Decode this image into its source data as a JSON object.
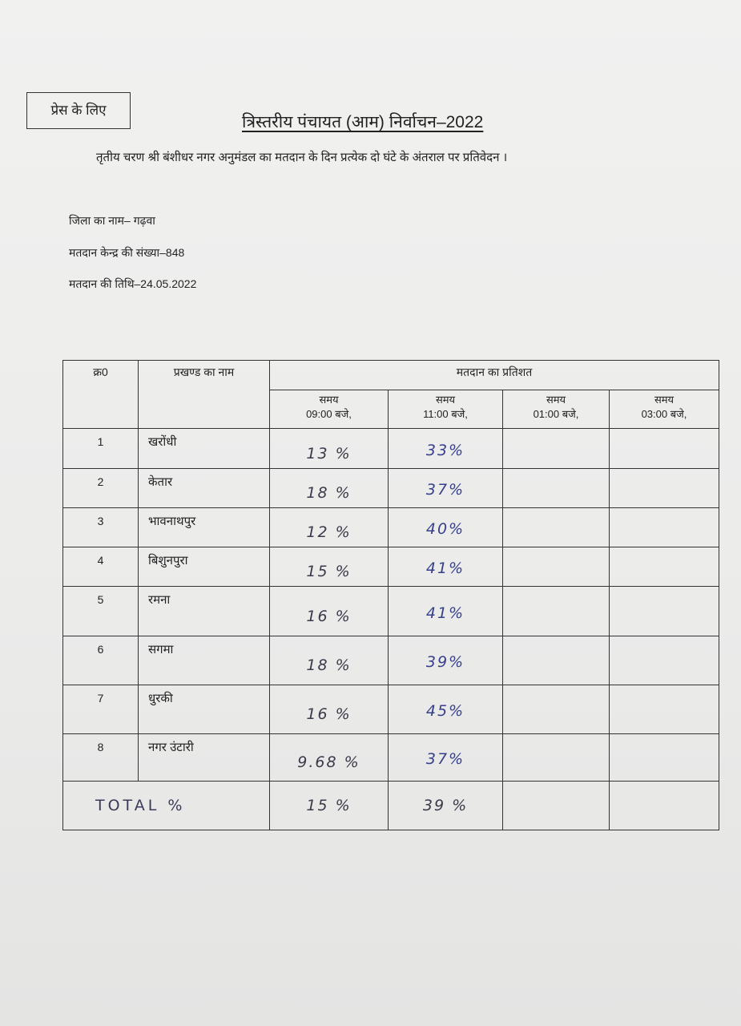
{
  "press_box": "प्रेस के लिए",
  "title": "त्रिस्तरीय पंचायत (आम) निर्वाचन–2022",
  "subtitle": "तृतीय चरण श्री बंशीधर नगर अनुमंडल का मतदान के दिन प्रत्येक दो घंटे के अंतराल पर प्रतिवेदन ।",
  "meta": {
    "district": "जिला का नाम– गढ़वा",
    "booths": "मतदान केन्द्र की संख्या–848",
    "date": "मतदान की तिथि–24.05.2022"
  },
  "table": {
    "col_serial": "क्र0",
    "col_block": "प्रखण्ड का नाम",
    "col_group": "मतदान  का प्रतिशत",
    "times": [
      {
        "label": "समय",
        "time": "09:00 बजे,"
      },
      {
        "label": "समय",
        "time": "11:00 बजे,"
      },
      {
        "label": "समय",
        "time": "01:00 बजे,"
      },
      {
        "label": "समय",
        "time": "03:00 बजे,"
      }
    ],
    "rows": [
      {
        "sn": "1",
        "name": "खरोंधी",
        "t9": "13 %",
        "t11": "33%"
      },
      {
        "sn": "2",
        "name": "केतार",
        "t9": "18 %",
        "t11": "37%"
      },
      {
        "sn": "3",
        "name": "भावनाथपुर",
        "t9": "12 %",
        "t11": "40%"
      },
      {
        "sn": "4",
        "name": "बिशुनपुरा",
        "t9": "15 %",
        "t11": "41%"
      },
      {
        "sn": "5",
        "name": "रमना",
        "t9": "16 %",
        "t11": "41%"
      },
      {
        "sn": "6",
        "name": "सगमा",
        "t9": "18 %",
        "t11": "39%"
      },
      {
        "sn": "7",
        "name": "धुरकी",
        "t9": "16 %",
        "t11": "45%"
      },
      {
        "sn": "8",
        "name": "नगर उंटारी",
        "t9": "9.68 %",
        "t11": "37%"
      }
    ],
    "total": {
      "label": "TOTAL %",
      "t9": "15 %",
      "t11": "39 %"
    }
  }
}
